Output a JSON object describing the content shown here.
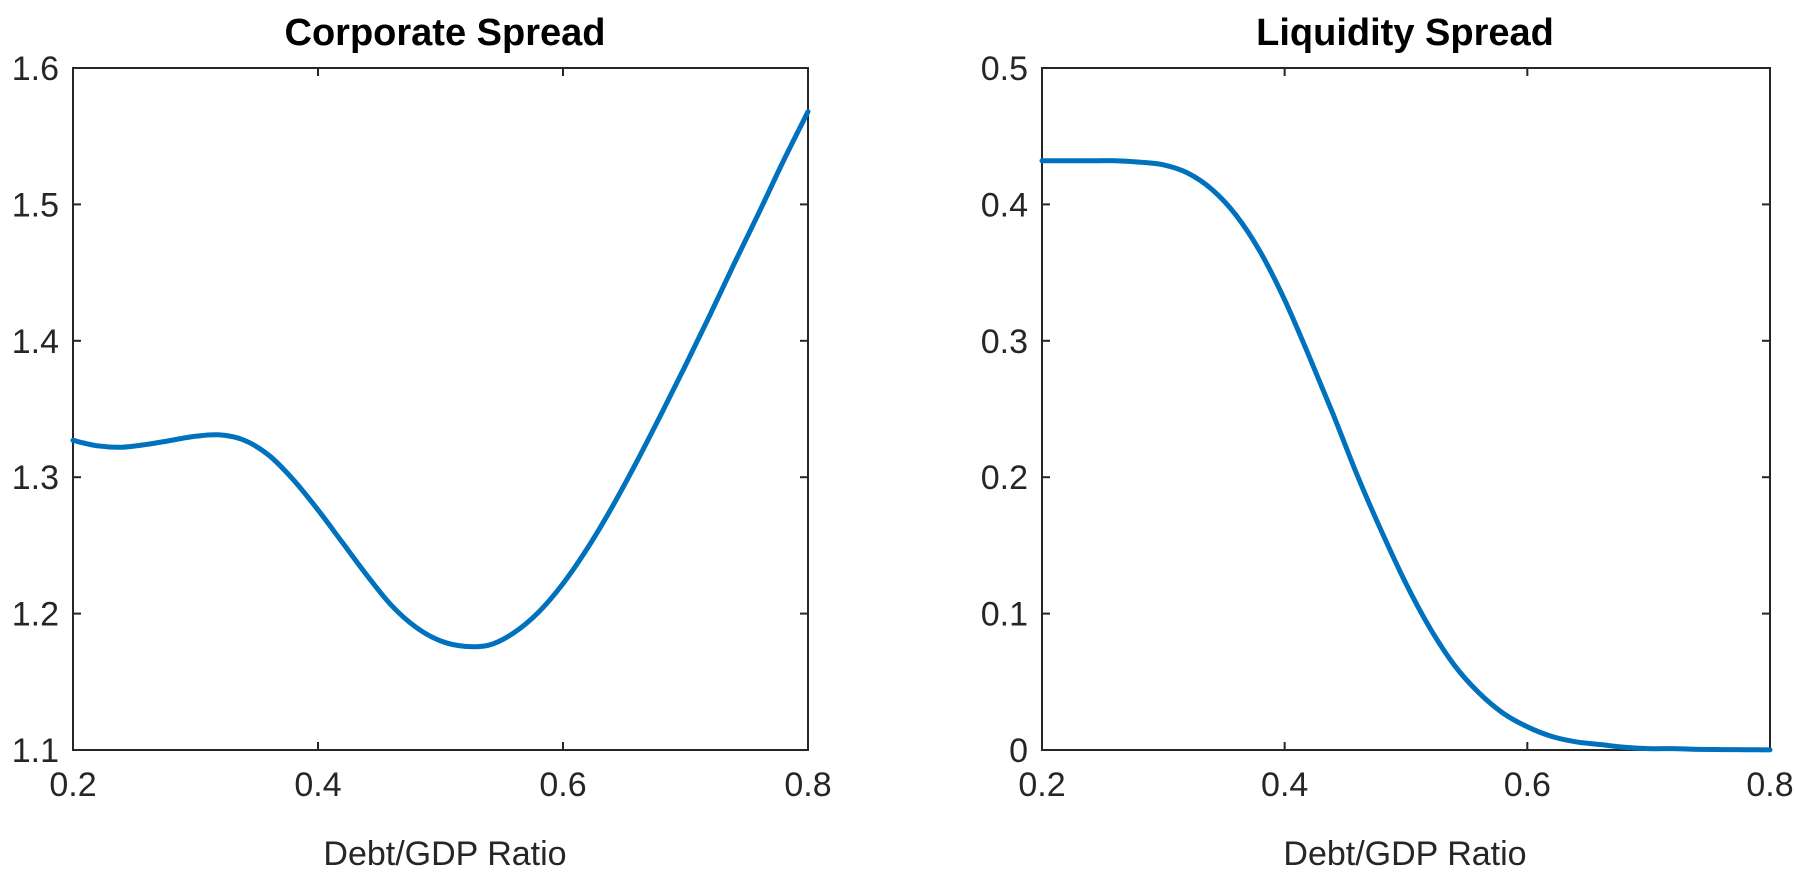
{
  "colors": {
    "series": "#0072BD",
    "axis": "#262626",
    "background": "#ffffff"
  },
  "chart_data": [
    {
      "type": "line",
      "title": "Corporate Spread",
      "xlabel": "Debt/GDP Ratio",
      "ylabel": "",
      "xlim": [
        0.2,
        0.8
      ],
      "ylim": [
        1.1,
        1.6
      ],
      "xticks": [
        0.2,
        0.4,
        0.6,
        0.8
      ],
      "xtick_labels": [
        "0.2",
        "0.4",
        "0.6",
        "0.8"
      ],
      "yticks": [
        1.1,
        1.2,
        1.3,
        1.4,
        1.5,
        1.6
      ],
      "ytick_labels": [
        "1.1",
        "1.2",
        "1.3",
        "1.4",
        "1.5",
        "1.6"
      ],
      "grid": false,
      "series": [
        {
          "x": [
            0.2,
            0.22,
            0.24,
            0.26,
            0.28,
            0.3,
            0.32,
            0.34,
            0.36,
            0.38,
            0.4,
            0.42,
            0.44,
            0.46,
            0.48,
            0.5,
            0.52,
            0.54,
            0.56,
            0.58,
            0.6,
            0.62,
            0.64,
            0.66,
            0.68,
            0.7,
            0.72,
            0.74,
            0.76,
            0.78,
            0.8
          ],
          "y": [
            1.327,
            1.323,
            1.322,
            1.324,
            1.327,
            1.33,
            1.331,
            1.327,
            1.316,
            1.298,
            1.276,
            1.252,
            1.228,
            1.206,
            1.19,
            1.18,
            1.176,
            1.177,
            1.186,
            1.201,
            1.222,
            1.248,
            1.278,
            1.311,
            1.346,
            1.382,
            1.419,
            1.457,
            1.494,
            1.532,
            1.568
          ]
        }
      ]
    },
    {
      "type": "line",
      "title": "Liquidity Spread",
      "xlabel": "Debt/GDP Ratio",
      "ylabel": "",
      "xlim": [
        0.2,
        0.8
      ],
      "ylim": [
        0,
        0.5
      ],
      "xticks": [
        0.2,
        0.4,
        0.6,
        0.8
      ],
      "xtick_labels": [
        "0.2",
        "0.4",
        "0.6",
        "0.8"
      ],
      "yticks": [
        0,
        0.1,
        0.2,
        0.3,
        0.4,
        0.5
      ],
      "ytick_labels": [
        "0",
        "0.1",
        "0.2",
        "0.3",
        "0.4",
        "0.5"
      ],
      "grid": false,
      "series": [
        {
          "x": [
            0.2,
            0.22,
            0.24,
            0.26,
            0.28,
            0.3,
            0.32,
            0.34,
            0.36,
            0.38,
            0.4,
            0.42,
            0.44,
            0.46,
            0.48,
            0.5,
            0.52,
            0.54,
            0.56,
            0.58,
            0.6,
            0.62,
            0.64,
            0.66,
            0.68,
            0.7,
            0.72,
            0.74,
            0.76,
            0.78,
            0.8
          ],
          "y": [
            0.432,
            0.432,
            0.432,
            0.432,
            0.431,
            0.429,
            0.423,
            0.411,
            0.392,
            0.365,
            0.33,
            0.289,
            0.246,
            0.201,
            0.16,
            0.122,
            0.089,
            0.062,
            0.042,
            0.027,
            0.017,
            0.01,
            0.006,
            0.004,
            0.002,
            0.001,
            0.001,
            0.0005,
            0.0003,
            0.0002,
            0.0001
          ]
        }
      ]
    }
  ]
}
